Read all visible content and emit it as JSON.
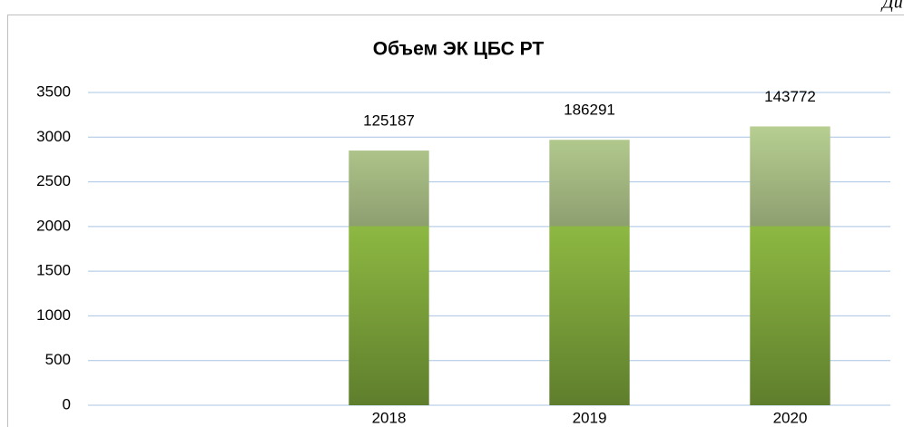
{
  "corner_text": "Ди",
  "chart_data": {
    "type": "bar",
    "title": "Объем ЭК ЦБС РТ",
    "categories": [
      null,
      "2018",
      "2019",
      "2020"
    ],
    "values": [
      null,
      2850,
      2970,
      3120
    ],
    "annotations": [
      null,
      "125187",
      "186291",
      "143772"
    ],
    "color": "#8db842",
    "ylim": [
      0,
      3500
    ],
    "yticks": [
      0,
      500,
      1000,
      1500,
      2000,
      2500,
      3000,
      3500
    ],
    "grid": true
  }
}
